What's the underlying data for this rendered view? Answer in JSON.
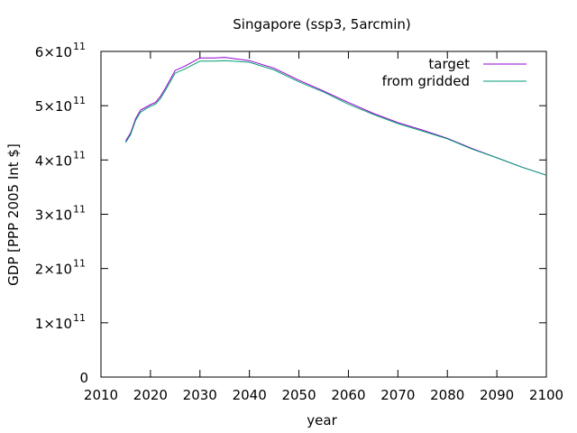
{
  "chart_data": {
    "type": "line",
    "title": "Singapore (ssp3, 5arcmin)",
    "xlabel": "year",
    "ylabel": "GDP [PPP 2005 Int $]",
    "xlim": [
      2010,
      2100
    ],
    "ylim": [
      0,
      600000000000
    ],
    "grid": false,
    "legend_position": "top-right",
    "x_ticks": [
      2010,
      2020,
      2030,
      2040,
      2050,
      2060,
      2070,
      2080,
      2090,
      2100
    ],
    "x_tick_labels": [
      "2010",
      "2020",
      "2030",
      "2040",
      "2050",
      "2060",
      "2070",
      "2080",
      "2090",
      "2100"
    ],
    "y_ticks": [
      {
        "value": 0,
        "mantissa": "0",
        "exponent": ""
      },
      {
        "value": 100000000000,
        "mantissa": "1×10",
        "exponent": "11"
      },
      {
        "value": 200000000000,
        "mantissa": "2×10",
        "exponent": "11"
      },
      {
        "value": 300000000000,
        "mantissa": "3×10",
        "exponent": "11"
      },
      {
        "value": 400000000000,
        "mantissa": "4×10",
        "exponent": "11"
      },
      {
        "value": 500000000000,
        "mantissa": "5×10",
        "exponent": "11"
      },
      {
        "value": 600000000000,
        "mantissa": "6×10",
        "exponent": "11"
      }
    ],
    "x": [
      2015,
      2016,
      2017,
      2018,
      2019,
      2020,
      2021,
      2022,
      2023,
      2025,
      2027,
      2030,
      2033,
      2035,
      2040,
      2045,
      2050,
      2055,
      2060,
      2065,
      2070,
      2075,
      2080,
      2085,
      2090,
      2095,
      2100
    ],
    "series": [
      {
        "name": "target",
        "color": "#9400d3",
        "values": [
          435,
          450,
          476,
          492,
          497,
          502,
          506,
          517,
          532,
          565,
          573,
          588,
          588,
          589,
          583,
          569,
          547,
          527,
          506,
          486,
          469,
          455,
          440,
          421,
          404,
          387,
          372
        ]
      },
      {
        "name": "from gridded",
        "color": "#009e73",
        "values": [
          432,
          447,
          473,
          488,
          494,
          499,
          503,
          513,
          528,
          560,
          568,
          582,
          582,
          583,
          580,
          566,
          544,
          525,
          503,
          484,
          467,
          453,
          439,
          420,
          404,
          387,
          372
        ]
      }
    ],
    "value_multiplier": 1000000000
  }
}
